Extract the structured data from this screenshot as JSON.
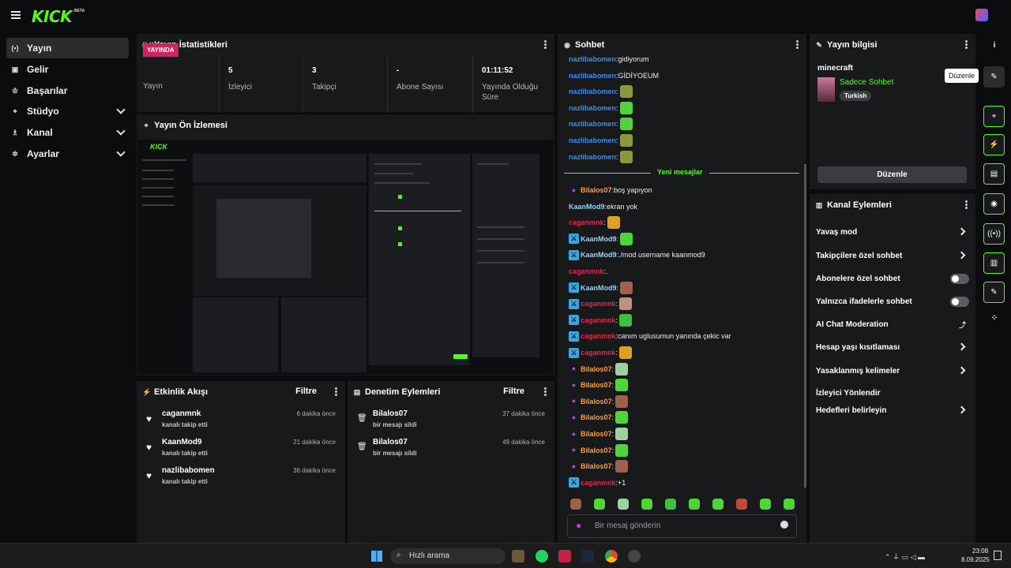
{
  "app": {
    "logo": "KICK",
    "beta": "BETA"
  },
  "sidebar": {
    "items": [
      {
        "label": "Yayın",
        "icon": "broadcast-icon",
        "glyph": "(•)"
      },
      {
        "label": "Gelir",
        "icon": "revenue-icon",
        "glyph": "▣"
      },
      {
        "label": "Başarılar",
        "icon": "trophy-icon",
        "glyph": "♔"
      },
      {
        "label": "Stüdyo",
        "icon": "studio-icon",
        "glyph": "⌖"
      },
      {
        "label": "Kanal",
        "icon": "channel-icon",
        "glyph": "♗"
      },
      {
        "label": "Ayarlar",
        "icon": "gear-icon",
        "glyph": "✲"
      }
    ]
  },
  "stats": {
    "title": "Yayın İstatistikleri",
    "live_badge": "YAYINDA",
    "live_label": "Yayın",
    "cells": [
      {
        "value": "5",
        "label": "İzleyici"
      },
      {
        "value": "3",
        "label": "Takipçi"
      },
      {
        "value": "-",
        "label": "Abone Sayısı"
      },
      {
        "value": "01:11:52",
        "label": "Yayında Olduğu Süre"
      }
    ]
  },
  "preview": {
    "title": "Yayın Ön İzlemesi"
  },
  "activity": {
    "title": "Etkinlik Akışı",
    "filter": "Filtre",
    "items": [
      {
        "name": "caganmnk",
        "sub": "kanalı takip etti",
        "time": "6 dakika önce"
      },
      {
        "name": "KaanMod9",
        "sub": "kanalı takip etti",
        "time": "21 dakika önce"
      },
      {
        "name": "nazlibabomen",
        "sub": "kanalı takip etti",
        "time": "36 dakika önce"
      }
    ]
  },
  "moderation": {
    "title": "Denetim Eylemleri",
    "filter": "Filtre",
    "items": [
      {
        "name": "Bilalos07",
        "sub": "bir mesajı sildi",
        "time": "37 dakika önce"
      },
      {
        "name": "Bilalos07",
        "sub": "bir mesajı sildi",
        "time": "49 dakika önce"
      }
    ]
  },
  "chat": {
    "title": "Sohbet",
    "new_messages": "Yeni mesajlar",
    "placeholder": "Bir mesaj gönderin",
    "messages": [
      {
        "user": "nazlibabomen",
        "color": "#3a8ef0",
        "badge": "",
        "text": "gidiyorum",
        "emote": ""
      },
      {
        "user": "nazlibabomen",
        "color": "#3a8ef0",
        "badge": "",
        "text": "GİDİYOEUM",
        "emote": ""
      },
      {
        "user": "nazlibabomen",
        "color": "#3a8ef0",
        "badge": "",
        "text": "",
        "emote": "#8a9a3a"
      },
      {
        "user": "nazlibabomen",
        "color": "#3a8ef0",
        "badge": "",
        "text": "",
        "emote": "#4fd43a"
      },
      {
        "user": "nazlibabomen",
        "color": "#3a8ef0",
        "badge": "",
        "text": "",
        "emote": "#4fd43a"
      },
      {
        "user": "nazlibabomen",
        "color": "#3a8ef0",
        "badge": "",
        "text": "",
        "emote": "#8a9a3a"
      },
      {
        "user": "nazlibabomen",
        "color": "#3a8ef0",
        "badge": "",
        "text": "",
        "emote": "#8a9a3a"
      },
      {
        "user": "Bilalos07",
        "color": "#ff9c3a",
        "badge": "mic",
        "text": "boş yapıyon",
        "emote": ""
      },
      {
        "user": "KaanMod9",
        "color": "#8fd3ff",
        "badge": "",
        "text": "ekran yok",
        "emote": ""
      },
      {
        "user": "caganmnk",
        "color": "#e0264f",
        "badge": "",
        "text": "",
        "emote": "#e0a020"
      },
      {
        "user": "KaanMod9",
        "color": "#8fd3ff",
        "badge": "sw",
        "text": "",
        "emote": "#4fd43a"
      },
      {
        "user": "KaanMod9",
        "color": "#8fd3ff",
        "badge": "sw",
        "text": "./mod username kaanmod9",
        "emote": ""
      },
      {
        "user": "caganmnk",
        "color": "#e0264f",
        "badge": "",
        "text": ".",
        "emote": ""
      },
      {
        "user": "KaanMod9",
        "color": "#8fd3ff",
        "badge": "sw",
        "text": "",
        "emote": "#a06050"
      },
      {
        "user": "caganmnk",
        "color": "#e0264f",
        "badge": "sw",
        "text": "",
        "emote": "#c09080"
      },
      {
        "user": "caganmnk",
        "color": "#e0264f",
        "badge": "sw",
        "text": "",
        "emote": "#3fbf3f"
      },
      {
        "user": "caganmnk",
        "color": "#e0264f",
        "badge": "sw",
        "text": "canım uglusumun yanında çekic var",
        "emote": ""
      },
      {
        "user": "caganmnk",
        "color": "#e0264f",
        "badge": "sw",
        "text": "",
        "emote": "#e0a020"
      },
      {
        "user": "Bilalos07",
        "color": "#ff9c3a",
        "badge": "mic",
        "text": "",
        "emote": "#9fd0a0"
      },
      {
        "user": "Bilalos07",
        "color": "#ff9c3a",
        "badge": "mic",
        "text": "",
        "emote": "#4fd43a"
      },
      {
        "user": "Bilalos07",
        "color": "#ff9c3a",
        "badge": "mic",
        "text": "",
        "emote": "#a0604a"
      },
      {
        "user": "Bilalos07",
        "color": "#ff9c3a",
        "badge": "mic",
        "text": "",
        "emote": "#4fd43a"
      },
      {
        "user": "Bilalos07",
        "color": "#ff9c3a",
        "badge": "mic",
        "text": "",
        "emote": "#9fd0a0"
      },
      {
        "user": "Bilalos07",
        "color": "#ff9c3a",
        "badge": "mic",
        "text": "",
        "emote": "#4fd43a"
      },
      {
        "user": "Bilalos07",
        "color": "#ff9c3a",
        "badge": "mic",
        "text": "",
        "emote": "#a0604a"
      },
      {
        "user": "caganmnk",
        "color": "#e0264f",
        "badge": "sw",
        "text": "+1",
        "emote": ""
      }
    ],
    "emote_bar": [
      "#a0604a",
      "#4fd43a",
      "#9fd0a0",
      "#4fd43a",
      "#3fbf3f",
      "#4fd43a",
      "#4fd43a",
      "#c04a3a",
      "#4fd43a",
      "#4fd43a"
    ]
  },
  "streaminfo": {
    "title": "Yayın bilgisi",
    "game": "minecraft",
    "category": "Sadece Sohbet",
    "language": "Turkish",
    "edit_button": "Düzenle",
    "tooltip": "Düzenle"
  },
  "channel_actions": {
    "title": "Kanal Eylemleri",
    "items": [
      {
        "label": "Yavaş mod",
        "type": "arrow"
      },
      {
        "label": "Takipçilere özel sohbet",
        "type": "arrow"
      },
      {
        "label": "Abonelere özel sohbet",
        "type": "toggle"
      },
      {
        "label": "Yalnızca ifadelerle sohbet",
        "type": "toggle"
      },
      {
        "label": "AI Chat Moderation",
        "type": "ext"
      },
      {
        "label": "Hesap yaşı kısıtlaması",
        "type": "arrow"
      },
      {
        "label": "Yasaklanmış kelimeler",
        "type": "arrow"
      },
      {
        "label": "İzleyici Yönlendir",
        "type": "none"
      },
      {
        "label": "Hedefleri belirleyin",
        "type": "arrow"
      }
    ]
  },
  "rightrail": [
    "info-icon",
    "pencil-icon",
    "camera-icon",
    "bolt-icon",
    "document-icon",
    "chat-icon",
    "broadcast-icon",
    "layout-icon",
    "wrench-icon",
    "apps-icon"
  ],
  "taskbar": {
    "search": "Hızlı arama",
    "time": "23:08",
    "date": "8.09.2025"
  }
}
